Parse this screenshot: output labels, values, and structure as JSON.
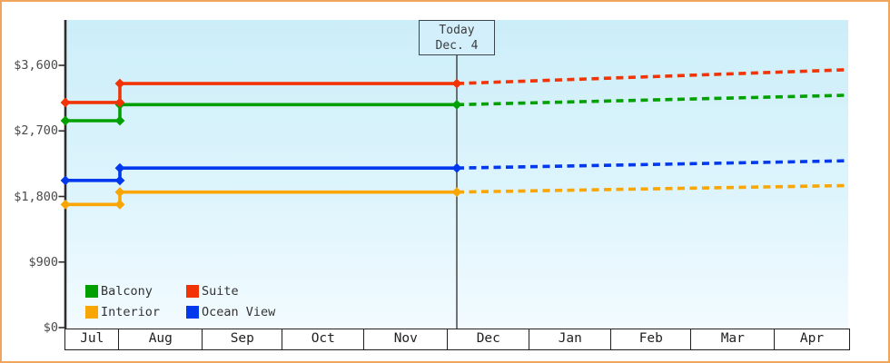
{
  "frame": {
    "border_color": "#efa55c"
  },
  "today_marker": {
    "line1": "Today",
    "line2": "Dec. 4"
  },
  "chart_data": {
    "type": "line",
    "title": "",
    "xlabel": "",
    "ylabel": "",
    "x_categories": [
      "Jul",
      "Aug",
      "Sep",
      "Oct",
      "Nov",
      "Dec",
      "Jan",
      "Feb",
      "Mar",
      "Apr"
    ],
    "y_ticks": [
      {
        "label": "$0",
        "value": 0
      },
      {
        "label": "$900",
        "value": 900
      },
      {
        "label": "$1,800",
        "value": 1800
      },
      {
        "label": "$2,700",
        "value": 2700
      },
      {
        "label": "$3,600",
        "value": 3600
      }
    ],
    "ylim": [
      0,
      4200
    ],
    "grid": false,
    "legend_position": "bottom-left-inside",
    "today": {
      "month": "Dec",
      "day": 4
    },
    "series": [
      {
        "name": "Balcony",
        "color": "#00a000",
        "jul_price": 2840,
        "current_price": 3060,
        "projected_apr_price": 3190
      },
      {
        "name": "Suite",
        "color": "#f23305",
        "jul_price": 3090,
        "current_price": 3350,
        "projected_apr_price": 3540
      },
      {
        "name": "Interior",
        "color": "#f9a602",
        "jul_price": 1690,
        "current_price": 1860,
        "projected_apr_price": 1950
      },
      {
        "name": "Ocean View",
        "color": "#0038ee",
        "jul_price": 2020,
        "current_price": 2190,
        "projected_apr_price": 2290
      }
    ],
    "solid_segment": "Jul through today (history)",
    "dashed_segment": "today through Apr (projection)"
  }
}
